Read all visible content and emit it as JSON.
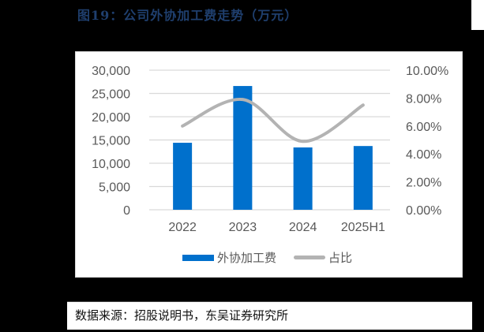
{
  "figure": {
    "title": "图19：公司外协加工费走势（万元）",
    "source": "数据来源：招股说明书，东吴证券研究所"
  },
  "colors": {
    "bar": "#0070CC",
    "line": "#B3B3B3",
    "title": "#1F3F6E",
    "grid": "#D9D9D9",
    "axis_text": "#595959"
  },
  "chart_data": {
    "type": "bar+line",
    "title": "公司外协加工费走势（万元）",
    "categories": [
      "2022",
      "2023",
      "2024",
      "2025H1"
    ],
    "series": [
      {
        "name": "外协加工费",
        "type": "bar",
        "axis": "left",
        "values": [
          14400,
          26600,
          13400,
          13700
        ]
      },
      {
        "name": "占比",
        "type": "line",
        "axis": "right",
        "smooth": true,
        "values": [
          0.06,
          0.079,
          0.049,
          0.075
        ]
      }
    ],
    "left_axis": {
      "ylim": [
        0,
        30000
      ],
      "ticks": [
        "0",
        "5,000",
        "10,000",
        "15,000",
        "20,000",
        "25,000",
        "30,000"
      ]
    },
    "right_axis": {
      "ylim": [
        0,
        0.1
      ],
      "ticks": [
        "0.00%",
        "2.00%",
        "4.00%",
        "6.00%",
        "8.00%",
        "10.00%"
      ]
    },
    "xlabel": "",
    "ylabel": "",
    "grid": true,
    "legend_position": "bottom",
    "legend": [
      "外协加工费",
      "占比"
    ]
  }
}
